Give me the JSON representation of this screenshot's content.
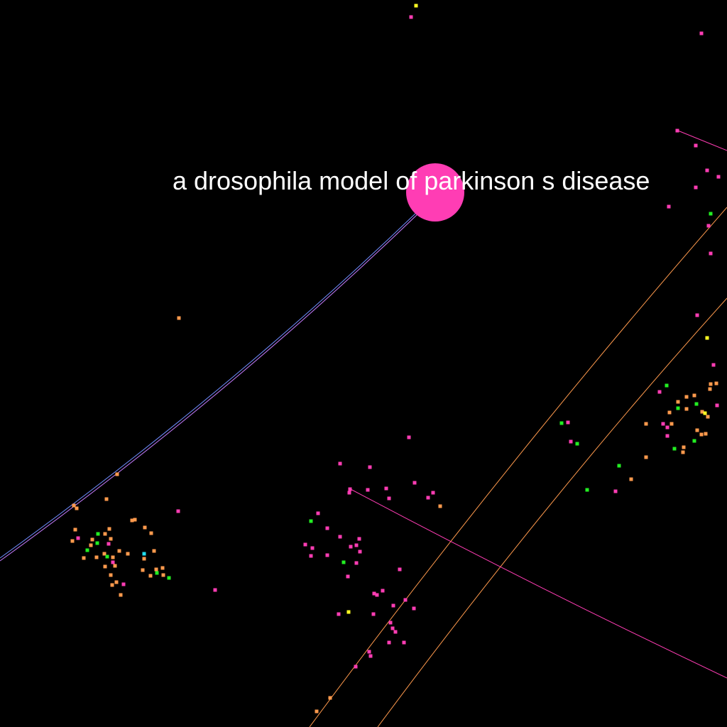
{
  "view": {
    "background": "#000000",
    "label_color": "#ffffff"
  },
  "focus_node": {
    "label": "a drosophila model of parkinson s disease",
    "color": "#ff3db4"
  },
  "palette": {
    "magenta": "#ff3db4",
    "orange": "#ff9a4d",
    "green": "#22ee22",
    "yellow": "#ffff22",
    "cyan": "#22ddee",
    "purple_edge": "#c77dff",
    "blue_edge": "#6f8cff"
  }
}
